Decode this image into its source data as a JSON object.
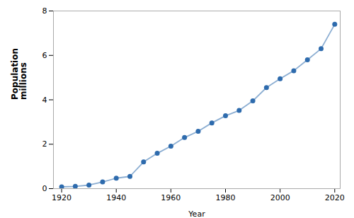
{
  "chart_data": {
    "type": "line",
    "x": [
      1920,
      1925,
      1930,
      1935,
      1940,
      1945,
      1950,
      1955,
      1960,
      1965,
      1970,
      1975,
      1980,
      1985,
      1990,
      1995,
      2000,
      2005,
      2010,
      2015,
      2020
    ],
    "values": [
      0.08,
      0.1,
      0.16,
      0.3,
      0.47,
      0.55,
      1.2,
      1.59,
      1.91,
      2.3,
      2.58,
      2.96,
      3.28,
      3.52,
      3.95,
      4.55,
      4.95,
      5.31,
      5.8,
      6.3,
      7.4
    ],
    "color": "#2e6bad",
    "marker": "circle",
    "xlabel": "Year",
    "ylabel": "Population\nmillions",
    "xlim": [
      1917,
      2022
    ],
    "xticks": [
      1920,
      1940,
      1960,
      1980,
      2000,
      2020
    ],
    "ylim": [
      0,
      8
    ],
    "yticks": [
      0,
      2,
      4,
      6,
      8
    ],
    "grid": false
  }
}
